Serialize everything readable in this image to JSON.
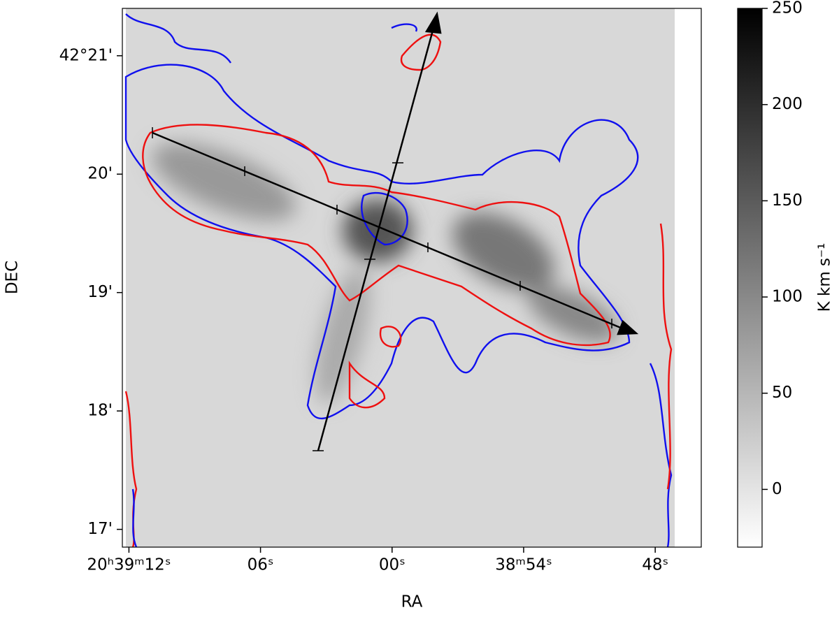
{
  "chart_data": {
    "type": "image",
    "xlabel": "RA",
    "ylabel": "DEC",
    "xlim": [
      12.3,
      -14.1
    ],
    "xticks": [
      {
        "value": 12,
        "label": "20ʰ39ᵐ12ˢ"
      },
      {
        "value": 6,
        "label": "06ˢ"
      },
      {
        "value": 0,
        "label": "00ˢ"
      },
      {
        "value": -6,
        "label": "38ᵐ54ˢ"
      },
      {
        "value": -12,
        "label": "48ˢ"
      }
    ],
    "ylim": [
      16.85,
      21.4
    ],
    "yticks": [
      {
        "value": 21,
        "label": "42°21'"
      },
      {
        "value": 20,
        "label": "20'"
      },
      {
        "value": 19,
        "label": "19'"
      },
      {
        "value": 18,
        "label": "18'"
      },
      {
        "value": 17,
        "label": "17'"
      }
    ],
    "colorbar": {
      "label": "K km s⁻¹",
      "clim": [
        -30,
        250
      ],
      "ticks": [
        0,
        50,
        100,
        150,
        200,
        250
      ]
    },
    "contour_colors": [
      "#1010ee",
      "#ee1010"
    ]
  }
}
